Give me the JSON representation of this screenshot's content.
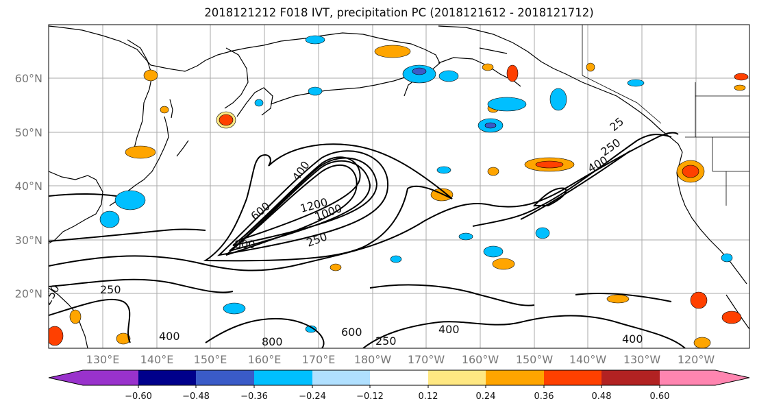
{
  "title": "2018121212 F018 IVT, precipitation PC (2018121612 - 2018121712)",
  "lat_labels": [
    "60°N",
    "50°N",
    "40°N",
    "30°N",
    "20°N"
  ],
  "lon_labels": [
    "130°E",
    "140°E",
    "150°E",
    "160°E",
    "170°E",
    "180°W",
    "170°W",
    "160°W",
    "150°W",
    "140°W",
    "130°W",
    "120°W"
  ],
  "colorbar": {
    "colors": [
      "#9932cc",
      "#00008b",
      "#3a5bc8",
      "#00bfff",
      "#b0e0ff",
      "#ffffff",
      "#ffe882",
      "#ffa500",
      "#ff4000",
      "#b22222",
      "#ff85b0"
    ],
    "tick_labels": [
      "−0.60",
      "−0.48",
      "−0.36",
      "−0.24",
      "−0.12",
      "0.12",
      "0.24",
      "0.36",
      "0.48",
      "0.60"
    ]
  },
  "ivt_contour_labels": [
    "250",
    "400",
    "600",
    "800",
    "1000",
    "1200",
    "250",
    "400",
    "250",
    "250",
    "400",
    "600",
    "800",
    "400",
    "400",
    "250",
    "25"
  ],
  "colors": {
    "contour": "#000000",
    "grid": "#aaaaaa",
    "coast": "#000000"
  }
}
